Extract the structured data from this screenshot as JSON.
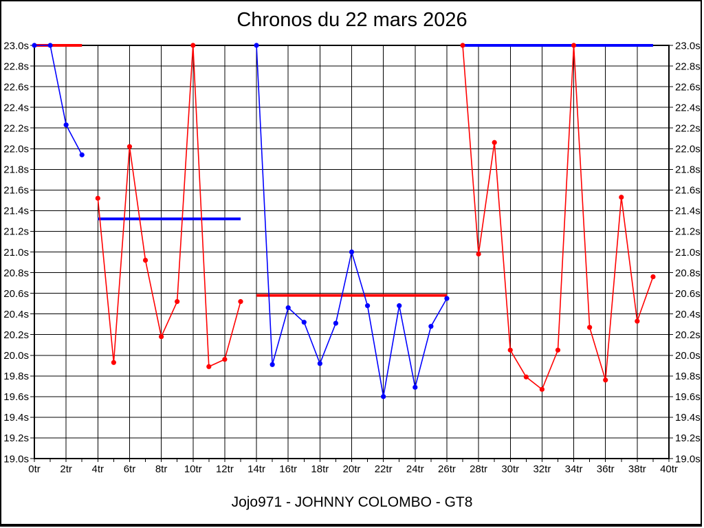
{
  "page": {
    "title": "Chronos du 22 mars 2026",
    "footer": "Jojo971 - JOHNNY COLOMBO - GT8"
  },
  "chart_data": {
    "type": "line",
    "title": "Chronos du 22 mars 2026",
    "footer": "Jojo971 - JOHNNY COLOMBO - GT8",
    "xlabel": "",
    "ylabel": "",
    "x_unit": "tr",
    "y_unit": "s",
    "xlim": [
      0,
      40
    ],
    "ylim": [
      19.0,
      23.0
    ],
    "grid": true,
    "legend": "none",
    "x_tick_labels": [
      "0tr",
      "2tr",
      "4tr",
      "6tr",
      "8tr",
      "10tr",
      "12tr",
      "14tr",
      "16tr",
      "18tr",
      "20tr",
      "22tr",
      "24tr",
      "26tr",
      "28tr",
      "30tr",
      "32tr",
      "34tr",
      "36tr",
      "38tr",
      "40tr"
    ],
    "y_tick_labels": [
      "23.0s",
      "22.8s",
      "22.6s",
      "22.4s",
      "22.2s",
      "22.0s",
      "21.8s",
      "21.6s",
      "21.4s",
      "21.2s",
      "21.0s",
      "20.8s",
      "20.6s",
      "20.4s",
      "20.2s",
      "20.0s",
      "19.8s",
      "19.6s",
      "19.4s",
      "19.2s",
      "19.0s"
    ],
    "series": [
      {
        "name": "red-driver",
        "color": "#ff0000",
        "marker": "circle",
        "segments": [
          {
            "x": [
              4,
              5,
              6,
              7,
              8,
              9,
              10,
              11,
              12,
              13
            ],
            "y": [
              21.52,
              19.93,
              22.02,
              20.92,
              20.18,
              20.52,
              23.0,
              19.89,
              19.96,
              20.52
            ]
          },
          {
            "x": [
              27,
              28,
              29,
              30,
              31,
              32,
              33,
              34,
              35,
              36,
              37,
              38,
              39
            ],
            "y": [
              23.0,
              20.98,
              22.06,
              20.05,
              19.79,
              19.67,
              20.05,
              23.0,
              20.27,
              19.76,
              21.53,
              20.33,
              20.76
            ]
          }
        ],
        "flat_lines": [
          {
            "x_start": 0,
            "x_end": 3,
            "y": 23.0
          },
          {
            "x_start": 14,
            "x_end": 26,
            "y": 20.58
          }
        ]
      },
      {
        "name": "blue-driver",
        "color": "#0000ff",
        "marker": "circle",
        "segments": [
          {
            "x": [
              0,
              1,
              2,
              3
            ],
            "y": [
              23.0,
              23.0,
              22.23,
              21.94
            ]
          },
          {
            "x": [
              14,
              15,
              16,
              17,
              18,
              19,
              20,
              21,
              22,
              23,
              24,
              25,
              26
            ],
            "y": [
              23.0,
              19.91,
              20.46,
              20.32,
              19.92,
              20.31,
              21.0,
              20.48,
              19.6,
              20.48,
              19.69,
              20.28,
              20.55
            ]
          }
        ],
        "flat_lines": [
          {
            "x_start": 4,
            "x_end": 13,
            "y": 21.32
          },
          {
            "x_start": 27,
            "x_end": 39,
            "y": 23.0
          }
        ]
      }
    ]
  }
}
